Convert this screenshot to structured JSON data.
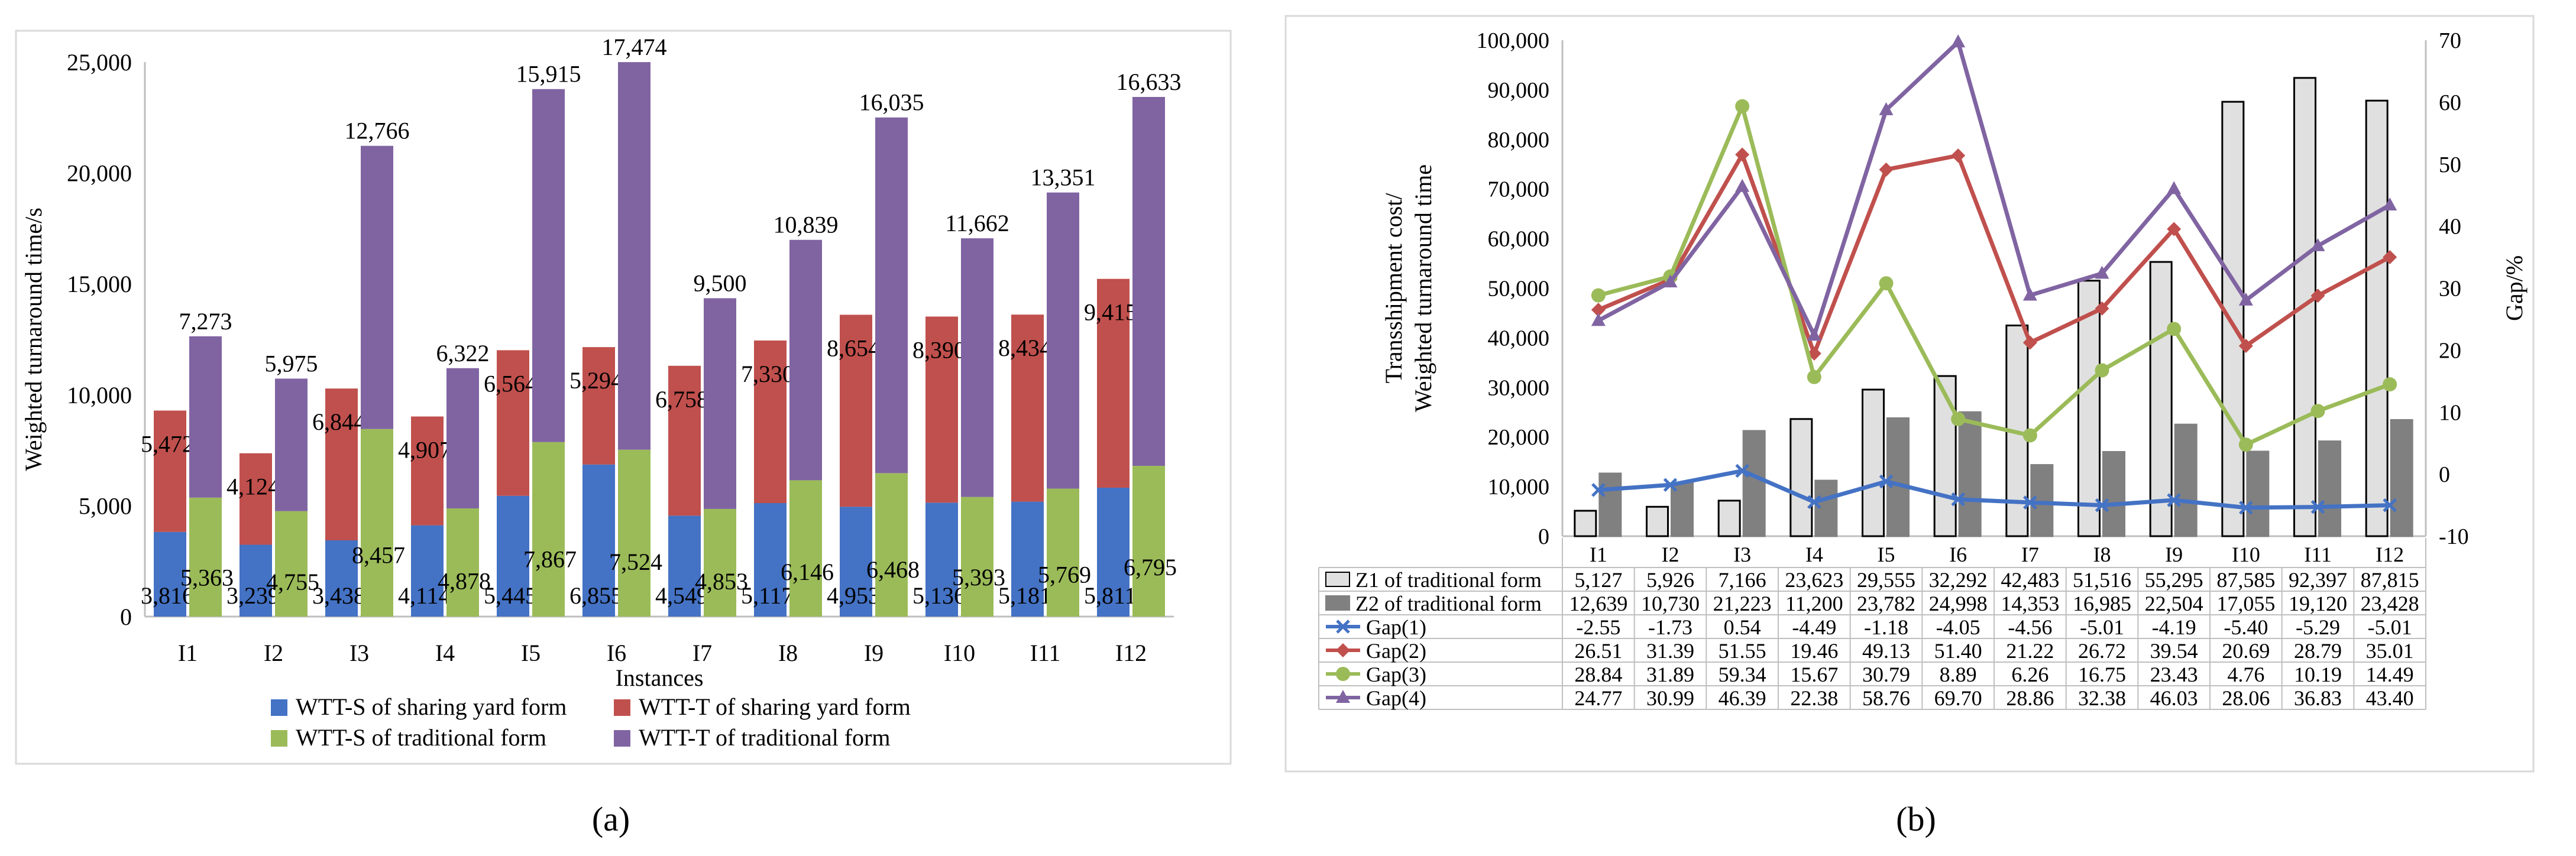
{
  "panel_labels": {
    "a": "(a)",
    "b": "(b)"
  },
  "chart_data": [
    {
      "type": "bar",
      "stacked": true,
      "title": "",
      "xlabel": "Instances",
      "ylabel": "Weighted turnaround time/s",
      "ylim": [
        0,
        25000
      ],
      "yticks": [
        0,
        5000,
        10000,
        15000,
        20000,
        25000
      ],
      "ytick_labels": [
        "0",
        "5,000",
        "10,000",
        "15,000",
        "20,000",
        "25,000"
      ],
      "categories": [
        "I1",
        "I2",
        "I3",
        "I4",
        "I5",
        "I6",
        "I7",
        "I8",
        "I9",
        "I10",
        "I11",
        "I12"
      ],
      "stacks": [
        {
          "name": "sharing yard form",
          "series": [
            {
              "name": "WTT-S of sharing yard form",
              "color": "#4472C4",
              "values": [
                3816,
                3239,
                3438,
                4114,
                5445,
                6855,
                4549,
                5117,
                4953,
                5136,
                5181,
                5811
              ],
              "labels": [
                "3,816",
                "3,239",
                "3,438",
                "4,114",
                "5,445",
                "6,855",
                "4,549",
                "5,117",
                "4,953",
                "5,136",
                "5,181",
                "5,811"
              ]
            },
            {
              "name": "WTT-T of sharing yard form",
              "color": "#C0504D",
              "values": [
                5472,
                4124,
                6844,
                4907,
                6564,
                5294,
                6758,
                7330,
                8654,
                8390,
                8434,
                9415
              ],
              "labels": [
                "5,472",
                "4,124",
                "6,844",
                "4,907",
                "6,564",
                "5,294",
                "6,758",
                "7,330",
                "8,654",
                "8,390",
                "8,434",
                "9,415"
              ]
            }
          ]
        },
        {
          "name": "traditional form",
          "series": [
            {
              "name": "WTT-S of traditional form",
              "color": "#9BBB59",
              "values": [
                5363,
                4755,
                8457,
                4878,
                7867,
                7524,
                4853,
                6146,
                6468,
                5393,
                5769,
                6795
              ],
              "labels": [
                "5,363",
                "4,755",
                "8,457",
                "4,878",
                "7,867",
                "7,524",
                "4,853",
                "6,146",
                "6,468",
                "5,393",
                "5,769",
                "6,795"
              ]
            },
            {
              "name": "WTT-T of traditional form",
              "color": "#8064A2",
              "values": [
                7273,
                5975,
                12766,
                6322,
                15915,
                17474,
                9500,
                10839,
                16035,
                11662,
                13351,
                16633
              ],
              "labels": [
                "7,273",
                "5,975",
                "12,766",
                "6,322",
                "15,915",
                "17,474",
                "9,500",
                "10,839",
                "16,035",
                "11,662",
                "13,351",
                "16,633"
              ]
            }
          ]
        }
      ],
      "legend": {
        "placement": "bottom",
        "items": [
          "WTT-S of sharing yard form",
          "WTT-T of sharing yard form",
          "WTT-S of traditional form",
          "WTT-T of traditional form"
        ]
      }
    },
    {
      "type": "bar+line",
      "title": "",
      "ylabel_left": [
        "Transshipment cost/",
        "Weighted turnaround time"
      ],
      "ylabel_right": "Gap/%",
      "ylim_left": [
        0,
        100000
      ],
      "yticks_left": [
        0,
        10000,
        20000,
        30000,
        40000,
        50000,
        60000,
        70000,
        80000,
        90000,
        100000
      ],
      "ytick_labels_left": [
        "0",
        "10,000",
        "20,000",
        "30,000",
        "40,000",
        "50,000",
        "60,000",
        "70,000",
        "80,000",
        "90,000",
        "100,000"
      ],
      "ylim_right": [
        -10,
        70
      ],
      "yticks_right": [
        -10,
        0,
        10,
        20,
        30,
        40,
        50,
        60,
        70
      ],
      "ytick_labels_right": [
        "-10",
        "0",
        "10",
        "20",
        "30",
        "40",
        "50",
        "60",
        "70"
      ],
      "categories": [
        "I1",
        "I2",
        "I3",
        "I4",
        "I5",
        "I6",
        "I7",
        "I8",
        "I9",
        "I10",
        "I11",
        "I12"
      ],
      "bar_series": [
        {
          "name": "Z1 of traditional form",
          "color": "#E0E0E0",
          "stroke": "#000000",
          "values": [
            5127,
            5926,
            7166,
            23623,
            29555,
            32292,
            42483,
            51516,
            55295,
            87585,
            92397,
            87815
          ],
          "labels": [
            "5,127",
            "5,926",
            "7,166",
            "23,623",
            "29,555",
            "32,292",
            "42,483",
            "51,516",
            "55,295",
            "87,585",
            "92,397",
            "87,815"
          ]
        },
        {
          "name": "Z2 of traditional form",
          "color": "#808080",
          "stroke": "#808080",
          "values": [
            12639,
            10730,
            21223,
            11200,
            23782,
            24998,
            14353,
            16985,
            22504,
            17055,
            19120,
            23428
          ],
          "labels": [
            "12,639",
            "10,730",
            "21,223",
            "11,200",
            "23,782",
            "24,998",
            "14,353",
            "16,985",
            "22,504",
            "17,055",
            "19,120",
            "23,428"
          ]
        }
      ],
      "line_series": [
        {
          "name": "Gap(1)",
          "color": "#4472C4",
          "marker": "x",
          "values": [
            -2.55,
            -1.73,
            0.54,
            -4.49,
            -1.18,
            -4.05,
            -4.56,
            -5.01,
            -4.19,
            -5.4,
            -5.29,
            -5.01
          ],
          "labels": [
            "-2.55",
            "-1.73",
            "0.54",
            "-4.49",
            "-1.18",
            "-4.05",
            "-4.56",
            "-5.01",
            "-4.19",
            "-5.40",
            "-5.29",
            "-5.01"
          ]
        },
        {
          "name": "Gap(2)",
          "color": "#C0504D",
          "marker": "diamond",
          "values": [
            26.51,
            31.39,
            51.55,
            19.46,
            49.13,
            51.4,
            21.22,
            26.72,
            39.54,
            20.69,
            28.79,
            35.01
          ],
          "labels": [
            "26.51",
            "31.39",
            "51.55",
            "19.46",
            "49.13",
            "51.40",
            "21.22",
            "26.72",
            "39.54",
            "20.69",
            "28.79",
            "35.01"
          ]
        },
        {
          "name": "Gap(3)",
          "color": "#9BBB59",
          "marker": "circle",
          "values": [
            28.84,
            31.89,
            59.34,
            15.67,
            30.79,
            8.89,
            6.26,
            16.75,
            23.43,
            4.76,
            10.19,
            14.49
          ],
          "labels": [
            "28.84",
            "31.89",
            "59.34",
            "15.67",
            "30.79",
            "8.89",
            "6.26",
            "16.75",
            "23.43",
            "4.76",
            "10.19",
            "14.49"
          ]
        },
        {
          "name": "Gap(4)",
          "color": "#8064A2",
          "marker": "triangle",
          "values": [
            24.77,
            30.99,
            46.39,
            22.38,
            58.76,
            69.7,
            28.86,
            32.38,
            46.03,
            28.06,
            36.83,
            43.4
          ],
          "labels": [
            "24.77",
            "30.99",
            "46.39",
            "22.38",
            "58.76",
            "69.70",
            "28.86",
            "32.38",
            "46.03",
            "28.06",
            "36.83",
            "43.40"
          ]
        }
      ],
      "legend": {
        "placement": "data-table-below"
      }
    }
  ]
}
